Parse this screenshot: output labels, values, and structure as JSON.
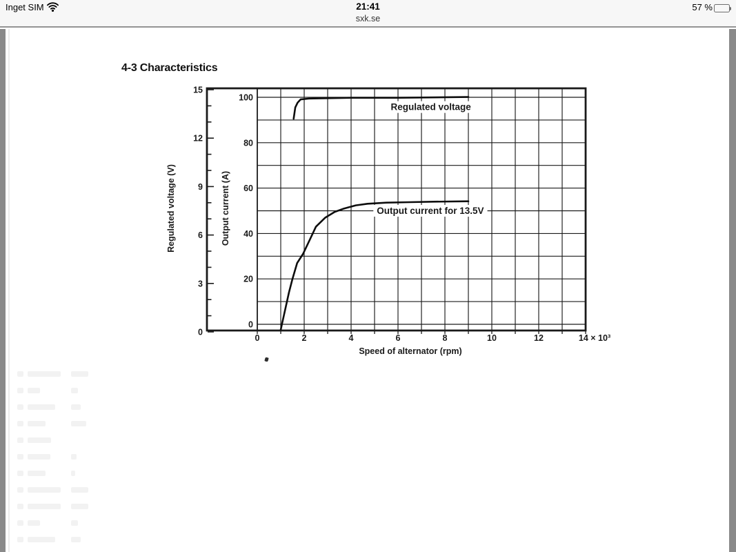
{
  "status_bar": {
    "carrier": "Inget SIM",
    "time": "21:41",
    "site": "sxk.se",
    "battery_text": "57 %",
    "battery_level_percent": 57
  },
  "page": {
    "section_title": "4-3 Characteristics"
  },
  "chart_data": {
    "type": "line",
    "title": "4-3 Characteristics",
    "xlabel": "Speed of alternator (rpm)",
    "x_units": "rpm × 10³",
    "xlim": [
      0,
      14
    ],
    "x_axis": {
      "tick_values": [
        0,
        2,
        4,
        6,
        8,
        10,
        12
      ],
      "tick_labels": [
        "0",
        "2",
        "4",
        "6",
        "8",
        "10",
        "12"
      ],
      "last_tick_value": 14,
      "last_tick_label": "14 × 10³",
      "gridline_step": 1
    },
    "y_axes": [
      {
        "id": "voltage",
        "label": "Regulated voltage (V)",
        "ticks": [
          0,
          3,
          6,
          9,
          12,
          15
        ],
        "minor_tick_step": 1,
        "range": [
          0,
          15
        ]
      },
      {
        "id": "current",
        "label": "Output current (A)",
        "ticks": [
          0,
          20,
          40,
          60,
          80,
          100
        ],
        "gridline_step": 10,
        "range": [
          0,
          100
        ]
      }
    ],
    "grid": true,
    "legend": "inline-labels",
    "colors": {
      "ink": "#1a1a1a",
      "curve": "#0d0d0d",
      "paper": "#ffffff"
    },
    "series": [
      {
        "name": "Regulated voltage",
        "y_axis": "voltage",
        "points": [
          [
            1.55,
            13.2
          ],
          [
            1.62,
            13.9
          ],
          [
            1.72,
            14.2
          ],
          [
            1.85,
            14.4
          ],
          [
            2.2,
            14.45
          ],
          [
            4,
            14.5
          ],
          [
            6,
            14.5
          ],
          [
            9,
            14.55
          ]
        ]
      },
      {
        "name": "Output current for 13.5V",
        "y_axis": "current",
        "points": [
          [
            1.05,
            0
          ],
          [
            1.2,
            7
          ],
          [
            1.35,
            14
          ],
          [
            1.5,
            20
          ],
          [
            1.7,
            27
          ],
          [
            1.95,
            31
          ],
          [
            2.25,
            37.5
          ],
          [
            2.5,
            43
          ],
          [
            2.9,
            47
          ],
          [
            3.3,
            49.5
          ],
          [
            3.7,
            51
          ],
          [
            4.2,
            52.4
          ],
          [
            4.7,
            53.1
          ],
          [
            5.5,
            53.6
          ],
          [
            6.5,
            53.8
          ],
          [
            7.5,
            54
          ],
          [
            9,
            54.2
          ]
        ]
      }
    ],
    "annotations": [
      {
        "text": "Regulated voltage",
        "x": 7.4,
        "y_axis": "current",
        "y": 95.7
      },
      {
        "text": "Output current for 13.5V",
        "x": 7.38,
        "y_axis": "current",
        "y": 50
      }
    ]
  }
}
